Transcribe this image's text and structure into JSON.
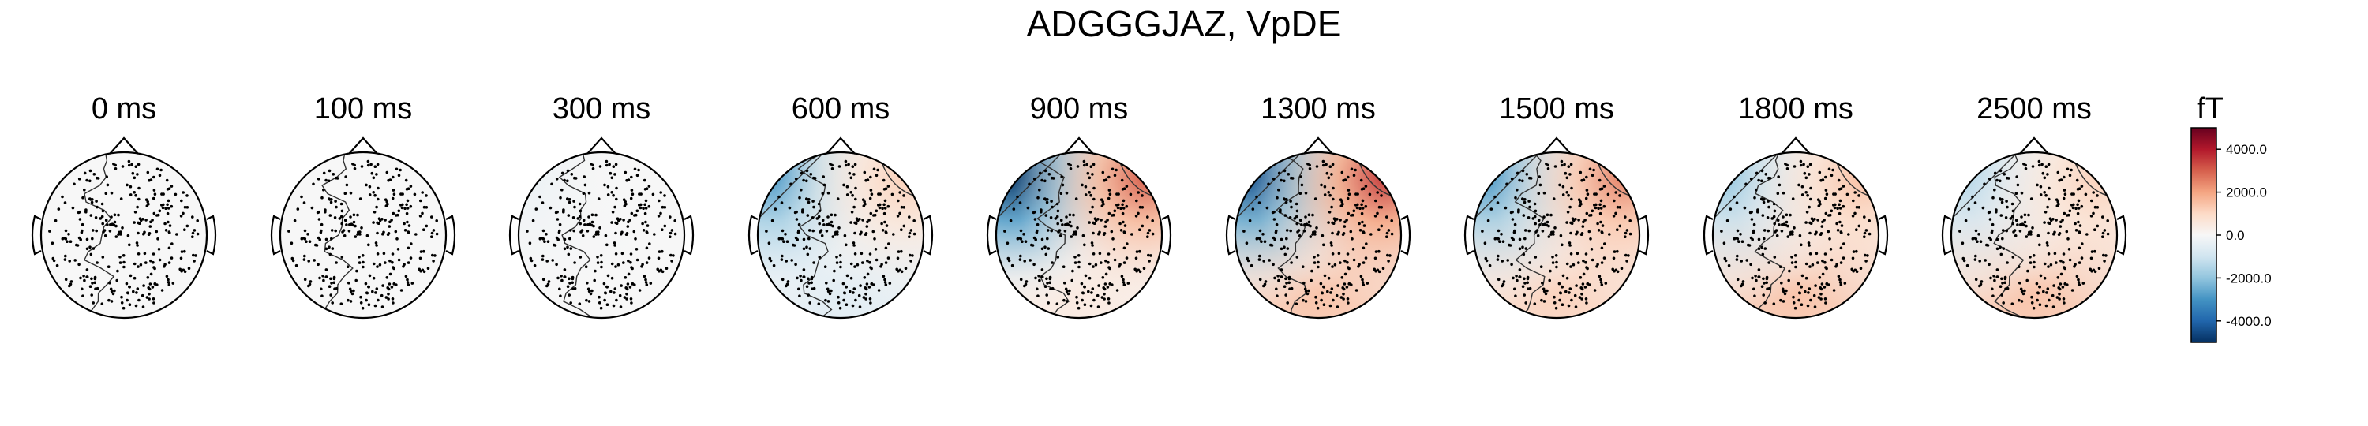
{
  "chart_data": {
    "type": "heatmap",
    "subtype": "topomap-series",
    "title": "ADGGGJAZ, VpDE",
    "unit": "fT",
    "colormap": "RdBu_r",
    "colorbar": {
      "label": "fT",
      "range": [
        -5000,
        5000
      ],
      "ticks": [
        4000,
        2000,
        0,
        -2000,
        -4000
      ],
      "tick_labels": [
        "4000.0",
        "2000.0",
        "0.0",
        "-2000.0",
        "-4000.0"
      ]
    },
    "times_ms": [
      0,
      100,
      300,
      600,
      900,
      1300,
      1500,
      1800,
      2500
    ],
    "panels": [
      {
        "label": "0 ms",
        "left_front": 0,
        "right_front": 0,
        "back": 0
      },
      {
        "label": "100 ms",
        "left_front": 0,
        "right_front": 0,
        "back": 0
      },
      {
        "label": "300 ms",
        "left_front": -300,
        "right_front": 0,
        "back": 0
      },
      {
        "label": "600 ms",
        "left_front": -3000,
        "right_front": 1200,
        "back": -600
      },
      {
        "label": "900 ms",
        "left_front": -5000,
        "right_front": 3000,
        "back": 500
      },
      {
        "label": "1300 ms",
        "left_front": -4500,
        "right_front": 3500,
        "back": 1500
      },
      {
        "label": "1500 ms",
        "left_front": -3000,
        "right_front": 2500,
        "back": 1200
      },
      {
        "label": "1800 ms",
        "left_front": -2000,
        "right_front": 1500,
        "back": 1500
      },
      {
        "label": "2500 ms",
        "left_front": -1500,
        "right_front": 1200,
        "back": 1500
      }
    ]
  }
}
